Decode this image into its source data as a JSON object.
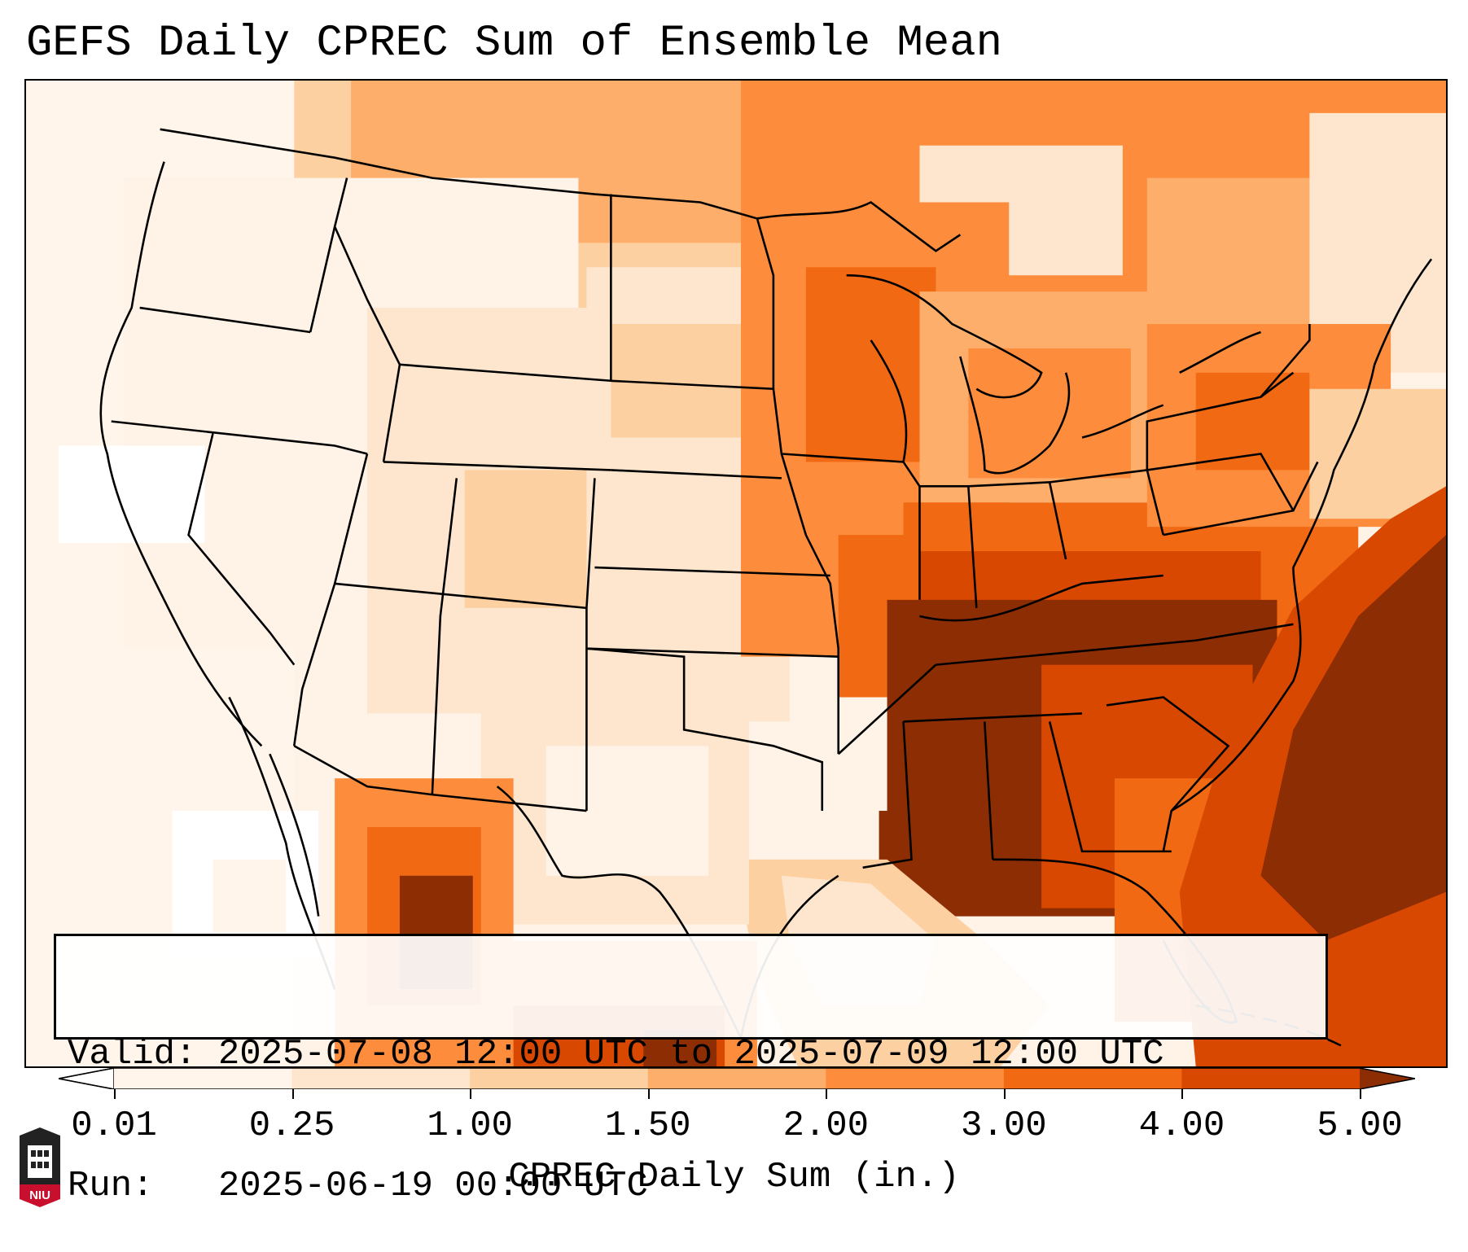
{
  "title": "GEFS Daily CPREC Sum of Ensemble Mean",
  "info": {
    "valid_label": "Valid:",
    "valid_value": "2025-07-08 12:00 UTC to 2025-07-09 12:00 UTC",
    "run_label": "Run:",
    "run_value": "2025-06-19 00:00 UTC"
  },
  "colorbar": {
    "label": "CPREC Daily Sum (in.)",
    "ticks": [
      "0.01",
      "0.25",
      "1.00",
      "1.50",
      "2.00",
      "3.00",
      "4.00",
      "5.00"
    ],
    "colors": [
      "#fff5eb",
      "#fee6ce",
      "#fdd0a2",
      "#fdae6b",
      "#fd8d3c",
      "#f16913",
      "#d94801",
      "#8c2d04"
    ],
    "under_color": "#ffffff",
    "over_color": "#8c2d04"
  },
  "logo": {
    "text": "NIU",
    "colors": {
      "red": "#c8102e",
      "dark": "#222222"
    }
  }
}
